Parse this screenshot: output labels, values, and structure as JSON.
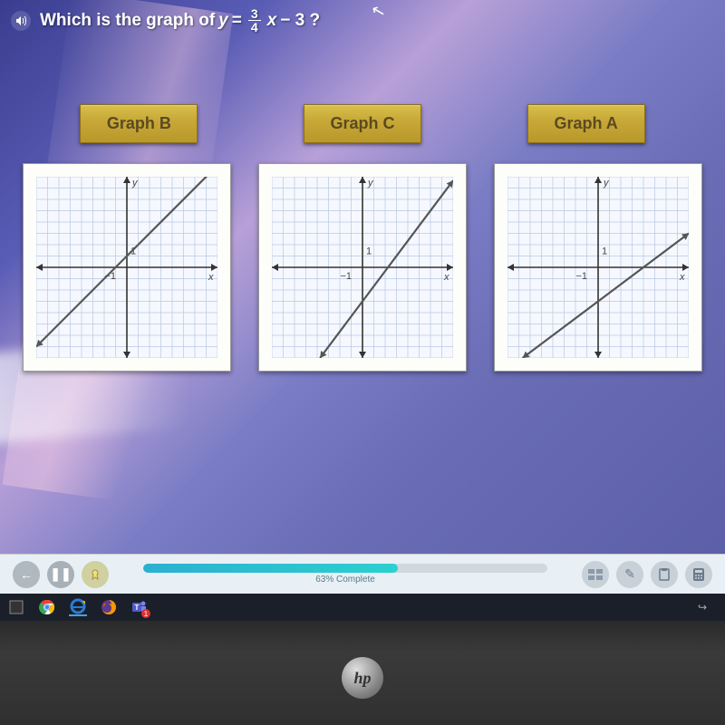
{
  "question": {
    "prefix": "Which is the graph of",
    "var_y": "y",
    "equals": "=",
    "frac_num": "3",
    "frac_den": "4",
    "var_x": "x",
    "rest": "− 3 ?"
  },
  "answers": [
    {
      "label": "Graph B"
    },
    {
      "label": "Graph C"
    },
    {
      "label": "Graph A"
    }
  ],
  "graphs": {
    "common": {
      "size": 200,
      "xlim": [
        -8,
        8
      ],
      "ylim": [
        -8,
        8
      ],
      "tick_step": 1,
      "grid_color": "#b8c8e0",
      "axis_color": "#333333",
      "line_color": "#555555",
      "line_width": 2.2,
      "background": "#f6f8ff",
      "label_y": "y",
      "label_x": "x",
      "origin_neg": "−1",
      "origin_pos": "1",
      "label_fontsize": 11,
      "label_fontfamily": "Arial, sans-serif",
      "label_color": "#444444"
    },
    "panels": [
      {
        "id": "B",
        "line": {
          "x1": -8,
          "y1": -7,
          "x2": 8,
          "y2": 9
        }
      },
      {
        "id": "C",
        "line": {
          "x1": -3.75,
          "y1": -8,
          "x2": 8,
          "y2": 7.67
        }
      },
      {
        "id": "A",
        "line": {
          "x1": -6.67,
          "y1": -8,
          "x2": 8,
          "y2": 3
        }
      }
    ]
  },
  "progress": {
    "percent": 63,
    "label": "63% Complete"
  },
  "toolbar": {
    "back": "←",
    "pause": "❚❚",
    "pencil": "✎",
    "clipboard": "📋",
    "calc": "📇"
  },
  "taskbar": {
    "chrome_colors": [
      "#ea4335",
      "#fbbc05",
      "#34a853",
      "#4285f4"
    ],
    "ie_color": "#2b7cd3",
    "firefox_colors": [
      "#ff9500",
      "#e66000"
    ],
    "teams_color": "#5059c9",
    "share": "⤵"
  },
  "logo": "hp",
  "colors": {
    "answer_btn_bg": "#c8a838",
    "screen_bg1": "#3a3d8f",
    "screen_bg2": "#7a7dc5"
  }
}
